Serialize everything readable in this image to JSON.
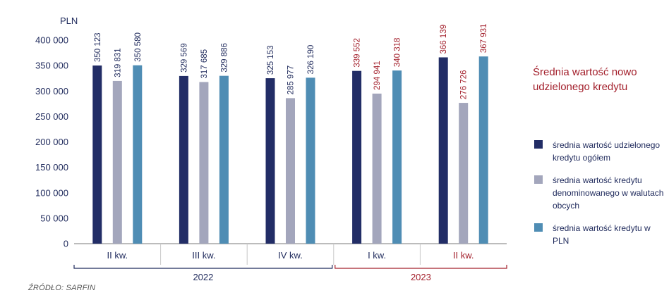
{
  "chart_data": {
    "type": "bar",
    "title": "Średnia wartość nowo udzielonego kredytu",
    "ylabel": "PLN",
    "ylim": [
      0,
      400000
    ],
    "yticks": [
      "0",
      "50 000",
      "100 000",
      "150 000",
      "200 000",
      "250 000",
      "300 000",
      "350 000",
      "400 000"
    ],
    "categories": [
      "II kw.",
      "III kw.",
      "IV kw.",
      "I kw.",
      "II kw."
    ],
    "groups": [
      {
        "label": "2022",
        "from": 0,
        "to": 2,
        "color": "#1f2a5c"
      },
      {
        "label": "2023",
        "from": 3,
        "to": 4,
        "color": "#a3202c"
      }
    ],
    "series": [
      {
        "name": "średnia wartość udzielonego kredytu ogółem",
        "color": "#222d66",
        "values": [
          350123,
          329569,
          325153,
          339552,
          366139
        ],
        "labels": [
          "350 123",
          "329 569",
          "325 153",
          "339 552",
          "366 139"
        ]
      },
      {
        "name": "średnia wartość kredytu denominowanego w walutach obcych",
        "color": "#a3a6bc",
        "values": [
          319831,
          317685,
          285977,
          294941,
          276726
        ],
        "labels": [
          "319 831",
          "317 685",
          "285 977",
          "294 941",
          "276 726"
        ]
      },
      {
        "name": "średnia wartość kredytu w PLN",
        "color": "#4f8db4",
        "values": [
          350580,
          329886,
          326190,
          340318,
          367931
        ],
        "labels": [
          "350 580",
          "329 886",
          "326 190",
          "340 318",
          "367 931"
        ]
      }
    ],
    "grid": false,
    "legend_position": "right"
  },
  "legend": [
    {
      "label": "średnia wartość udzielonego kredytu ogółem",
      "color": "#222d66"
    },
    {
      "label": "średnia wartość kredytu denominowanego w walutach obcych",
      "color": "#a3a6bc"
    },
    {
      "label": "średnia wartość kredytu w PLN",
      "color": "#4f8db4"
    }
  ],
  "colors": {
    "text_primary": "#1f2a5c",
    "highlight": "#a3202c",
    "axis": "#7a7a7a"
  },
  "source": "ŹRÓDŁO: SARFIN"
}
